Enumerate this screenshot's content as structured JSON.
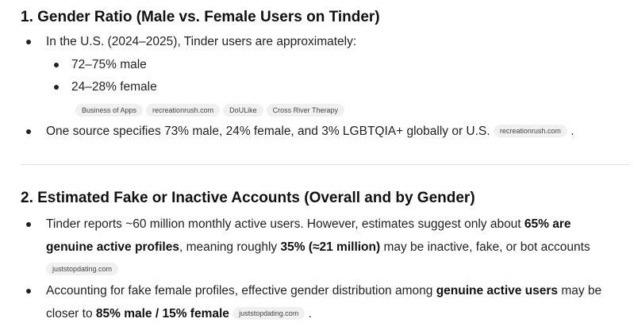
{
  "section1": {
    "title": "1. Gender Ratio (Male vs. Female Users on Tinder)",
    "bullet1": "In the U.S. (2024–2025), Tinder users are approximately:",
    "sub1": "72–75% male",
    "sub2": "24–28% female",
    "sources": [
      "Business of Apps",
      "recreationrush.com",
      "DoULike",
      "Cross River Therapy"
    ],
    "bullet2": "One source specifies 73% male, 24% female, and 3% LGBTQIA+ globally or U.S.",
    "bullet2_source": "recreationrush.com",
    "bullet2_end": "."
  },
  "section2": {
    "title": "2. Estimated Fake or Inactive Accounts (Overall and by Gender)",
    "b1_part1": "Tinder reports ~60 million monthly active users. However, estimates suggest only about ",
    "b1_bold1": "65% are",
    "b1_bold2": "genuine active profiles",
    "b1_part2": ", meaning roughly ",
    "b1_bold3": "35% (≈21 million)",
    "b1_part3": " may be inactive, fake, or bot accounts",
    "b1_source": "juststopdating.com",
    "b2_part1": "Accounting for fake female profiles, effective gender distribution among ",
    "b2_bold1": "genuine active users",
    "b2_part2": " may be",
    "b2_part3": "closer to ",
    "b2_bold2": "85% male / 15% female",
    "b2_source": "juststopdating.com",
    "b2_end": "."
  }
}
